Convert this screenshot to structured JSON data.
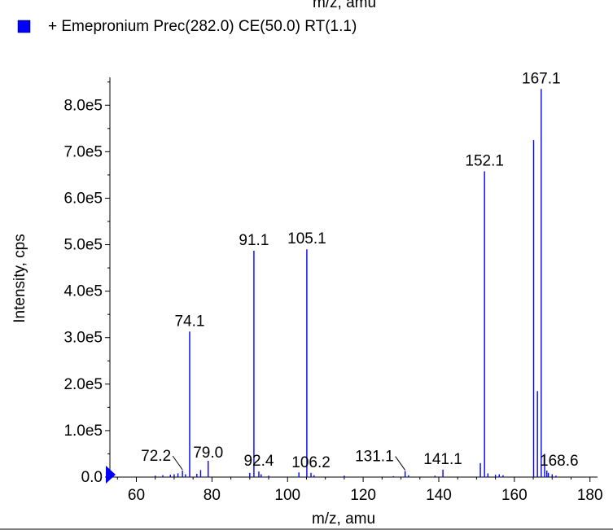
{
  "top_cut_label": "m/z, amu",
  "legend": {
    "swatch_color": "#0000ff",
    "label": "+ Emepronium Prec(282.0) CE(50.0) RT(1.1)"
  },
  "colors": {
    "series": "#0000ff",
    "axis": "#000000",
    "marker": "#0000ff"
  },
  "chart_data": {
    "type": "bar",
    "xlabel": "m/z, amu",
    "ylabel": "Intensity, cps",
    "xlim": [
      53,
      182
    ],
    "ylim": [
      0,
      860000
    ],
    "grid": false,
    "x_ticks": [
      60,
      80,
      100,
      120,
      140,
      160,
      180
    ],
    "x_tick_labels": [
      "60",
      "80",
      "100",
      "120",
      "140",
      "160",
      "180"
    ],
    "y_ticks": [
      0,
      100000,
      200000,
      300000,
      400000,
      500000,
      600000,
      700000,
      800000
    ],
    "y_tick_labels": [
      "0.0",
      "1.0e5",
      "2.0e5",
      "3.0e5",
      "4.0e5",
      "5.0e5",
      "6.0e5",
      "7.0e5",
      "8.0e5"
    ],
    "peaks": [
      {
        "x": 65.0,
        "y": 3000
      },
      {
        "x": 67.0,
        "y": 4000
      },
      {
        "x": 69.0,
        "y": 5000
      },
      {
        "x": 70.0,
        "y": 6000
      },
      {
        "x": 71.0,
        "y": 8000
      },
      {
        "x": 72.2,
        "y": 14000
      },
      {
        "x": 73.0,
        "y": 6000
      },
      {
        "x": 74.1,
        "y": 313000
      },
      {
        "x": 76.0,
        "y": 7000
      },
      {
        "x": 77.0,
        "y": 15000
      },
      {
        "x": 79.0,
        "y": 35000
      },
      {
        "x": 90.0,
        "y": 9000
      },
      {
        "x": 91.1,
        "y": 487000
      },
      {
        "x": 92.4,
        "y": 12000
      },
      {
        "x": 93.0,
        "y": 6000
      },
      {
        "x": 95.0,
        "y": 3000
      },
      {
        "x": 103.0,
        "y": 10000
      },
      {
        "x": 105.1,
        "y": 490000
      },
      {
        "x": 106.2,
        "y": 9000
      },
      {
        "x": 107.0,
        "y": 4000
      },
      {
        "x": 115.0,
        "y": 3000
      },
      {
        "x": 128.0,
        "y": 2000
      },
      {
        "x": 131.1,
        "y": 13000
      },
      {
        "x": 132.0,
        "y": 4000
      },
      {
        "x": 139.0,
        "y": 3000
      },
      {
        "x": 141.1,
        "y": 16000
      },
      {
        "x": 151.0,
        "y": 30000
      },
      {
        "x": 152.1,
        "y": 658000
      },
      {
        "x": 153.0,
        "y": 8000
      },
      {
        "x": 155.0,
        "y": 5000
      },
      {
        "x": 156.0,
        "y": 6000
      },
      {
        "x": 157.0,
        "y": 4000
      },
      {
        "x": 165.1,
        "y": 725000
      },
      {
        "x": 166.1,
        "y": 185000
      },
      {
        "x": 167.1,
        "y": 835000
      },
      {
        "x": 168.0,
        "y": 50000
      },
      {
        "x": 168.6,
        "y": 14000
      },
      {
        "x": 169.0,
        "y": 9000
      },
      {
        "x": 170.0,
        "y": 6000
      },
      {
        "x": 171.0,
        "y": 3000
      }
    ],
    "labels": [
      {
        "text": "167.1",
        "x": 167.1,
        "y": 835000,
        "leader": false
      },
      {
        "text": "152.1",
        "x": 152.1,
        "y": 658000,
        "leader": false
      },
      {
        "text": "91.1",
        "x": 91.1,
        "y": 487000,
        "leader": false
      },
      {
        "text": "105.1",
        "x": 105.1,
        "y": 490000,
        "leader": false
      },
      {
        "text": "74.1",
        "x": 74.1,
        "y": 313000,
        "leader": false
      },
      {
        "text": "72.2",
        "x": 72.2,
        "y": 14000,
        "leader": true
      },
      {
        "text": "79.0",
        "x": 79.0,
        "y": 35000,
        "leader": false
      },
      {
        "text": "92.4",
        "x": 92.4,
        "y": 12000,
        "leader": false
      },
      {
        "text": "106.2",
        "x": 106.2,
        "y": 9000,
        "leader": false
      },
      {
        "text": "131.1",
        "x": 131.1,
        "y": 13000,
        "leader": true
      },
      {
        "text": "141.1",
        "x": 141.1,
        "y": 16000,
        "leader": false
      },
      {
        "text": "168.6",
        "x": 168.6,
        "y": 14000,
        "leader": false
      }
    ]
  }
}
